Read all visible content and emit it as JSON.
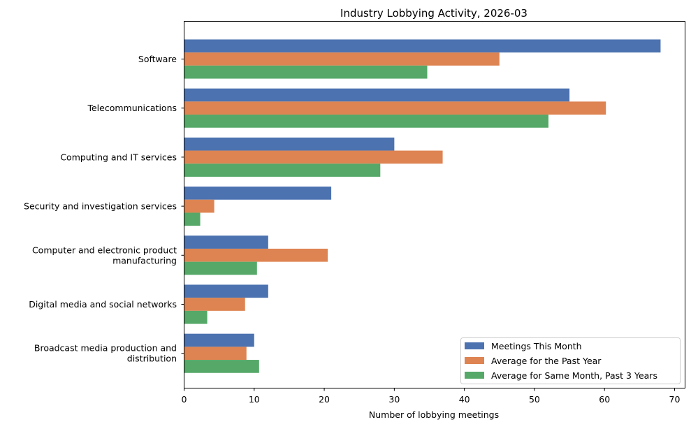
{
  "chart_data": {
    "type": "bar",
    "orientation": "horizontal",
    "title": "Industry Lobbying Activity, 2026-03",
    "xlabel": "Number of lobbying meetings",
    "ylabel": "",
    "xlim": [
      0,
      71.5
    ],
    "xticks": [
      "0",
      "10",
      "20",
      "30",
      "40",
      "50",
      "60",
      "70"
    ],
    "grid": false,
    "legend_position": "bottom-right",
    "categories": [
      [
        "Software"
      ],
      [
        "Telecommunications"
      ],
      [
        "Computing and IT services"
      ],
      [
        "Security and investigation services"
      ],
      [
        "Computer and electronic product",
        "manufacturing"
      ],
      [
        "Digital media and social networks"
      ],
      [
        "Broadcast media production and",
        "distribution"
      ]
    ],
    "series": [
      {
        "name": "Meetings This Month",
        "color": "#4c72b0",
        "values": [
          68,
          55,
          30,
          21,
          12,
          12,
          10
        ]
      },
      {
        "name": "Average for the Past Year",
        "color": "#dd8452",
        "values": [
          45.0,
          60.2,
          36.9,
          4.3,
          20.5,
          8.7,
          8.9
        ]
      },
      {
        "name": "Average for Same Month, Past 3 Years",
        "color": "#55a868",
        "values": [
          34.7,
          52.0,
          28.0,
          2.3,
          10.4,
          3.3,
          10.7
        ]
      }
    ]
  }
}
